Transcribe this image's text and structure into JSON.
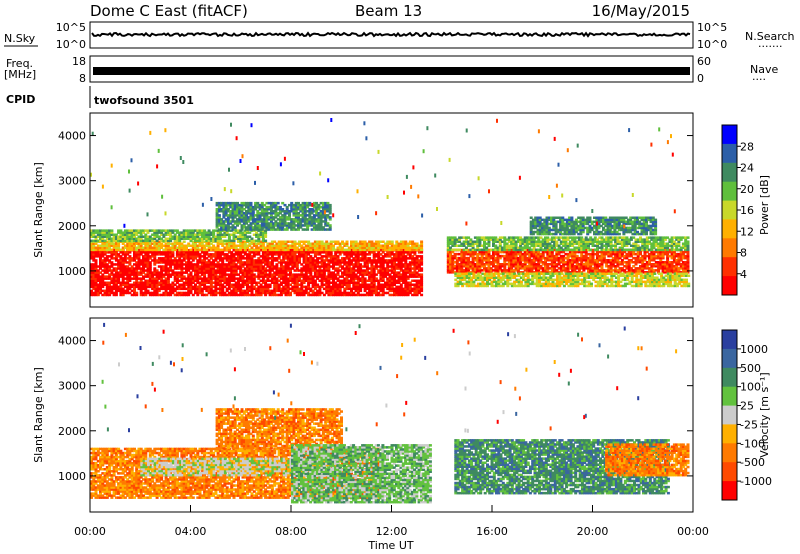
{
  "header": {
    "station": "Dome C East (fitACF)",
    "beam": "Beam 13",
    "date": "16/May/2015"
  },
  "strip_panels": {
    "nsky": {
      "label": "N.Sky",
      "ticks": [
        "10^5",
        "10^0"
      ]
    },
    "nsearch": {
      "label": "N.Search",
      "ticks": [
        "10^5",
        "10^0"
      ]
    },
    "freq": {
      "label_line1": "Freq.",
      "label_line2": "[MHz]",
      "ticks": [
        "18",
        "8"
      ]
    },
    "nave": {
      "label": "Nave",
      "ticks": [
        "60",
        "0"
      ]
    },
    "cpid": {
      "label": "CPID",
      "value": "twofsound 3501"
    }
  },
  "colors": {
    "power_scale": [
      "#0000ff",
      "#2c5fa8",
      "#3f8a60",
      "#5fbf3c",
      "#c8d82a",
      "#ffb000",
      "#ff7a00",
      "#ff3000",
      "#ff0000"
    ],
    "velocity_scale": [
      "#2a3f9f",
      "#3a66a0",
      "#3f8a60",
      "#62c23e",
      "#cccccc",
      "#ffb000",
      "#ff7a00",
      "#ff4a00",
      "#ff0000"
    ]
  },
  "chart_data": [
    {
      "type": "heatmap",
      "parameter": "Power",
      "ylabel": "Slant Range [km]",
      "ylim": [
        200,
        4500
      ],
      "yticks": [
        "1000",
        "2000",
        "3000",
        "4000"
      ],
      "colorbar_label": "Power [dB]",
      "colorbar_ticks": [
        "28",
        "24",
        "20",
        "16",
        "12",
        "8",
        "4"
      ],
      "regions": [
        {
          "t0": 0.0,
          "t1": 13.2,
          "r0": 450,
          "r1": 1450,
          "level": 8
        },
        {
          "t0": 0.0,
          "t1": 13.2,
          "r0": 1450,
          "r1": 1650,
          "level": 5
        },
        {
          "t0": 0.0,
          "t1": 7.0,
          "r0": 1650,
          "r1": 1900,
          "level": 3
        },
        {
          "t0": 5.0,
          "t1": 9.5,
          "r0": 1900,
          "r1": 2500,
          "level": 2
        },
        {
          "t0": 14.2,
          "t1": 23.8,
          "r0": 950,
          "r1": 1450,
          "level": 7
        },
        {
          "t0": 14.2,
          "t1": 23.8,
          "r0": 1450,
          "r1": 1750,
          "level": 3
        },
        {
          "t0": 14.5,
          "t1": 23.8,
          "r0": 650,
          "r1": 950,
          "level": 4
        },
        {
          "t0": 17.5,
          "t1": 22.5,
          "r0": 1800,
          "r1": 2200,
          "level": 2
        }
      ]
    },
    {
      "type": "heatmap",
      "parameter": "Velocity",
      "ylabel": "Slant Range [km]",
      "xlabel": "Time UT",
      "ylim": [
        200,
        4500
      ],
      "yticks": [
        "1000",
        "2000",
        "3000",
        "4000"
      ],
      "xticks": [
        "00:00",
        "04:00",
        "08:00",
        "12:00",
        "16:00",
        "20:00",
        "00:00"
      ],
      "xlim": [
        0,
        24
      ],
      "colorbar_label": "Velocity [m s⁻¹]",
      "colorbar_ticks": [
        "1000",
        "500",
        "100",
        "25",
        "-25",
        "-100",
        "-500",
        "-1000"
      ],
      "regions": [
        {
          "t0": 0.0,
          "t1": 11.5,
          "r0": 500,
          "r1": 1600,
          "level": 6
        },
        {
          "t0": 2.0,
          "t1": 10.0,
          "r0": 1000,
          "r1": 1400,
          "level": 4
        },
        {
          "t0": 5.0,
          "t1": 10.0,
          "r0": 1600,
          "r1": 2500,
          "level": 6
        },
        {
          "t0": 8.0,
          "t1": 13.5,
          "r0": 400,
          "r1": 1700,
          "level": 3
        },
        {
          "t0": 14.5,
          "t1": 23.0,
          "r0": 600,
          "r1": 1800,
          "level": 2
        },
        {
          "t0": 20.5,
          "t1": 23.8,
          "r0": 1000,
          "r1": 1700,
          "level": 6
        }
      ]
    }
  ]
}
